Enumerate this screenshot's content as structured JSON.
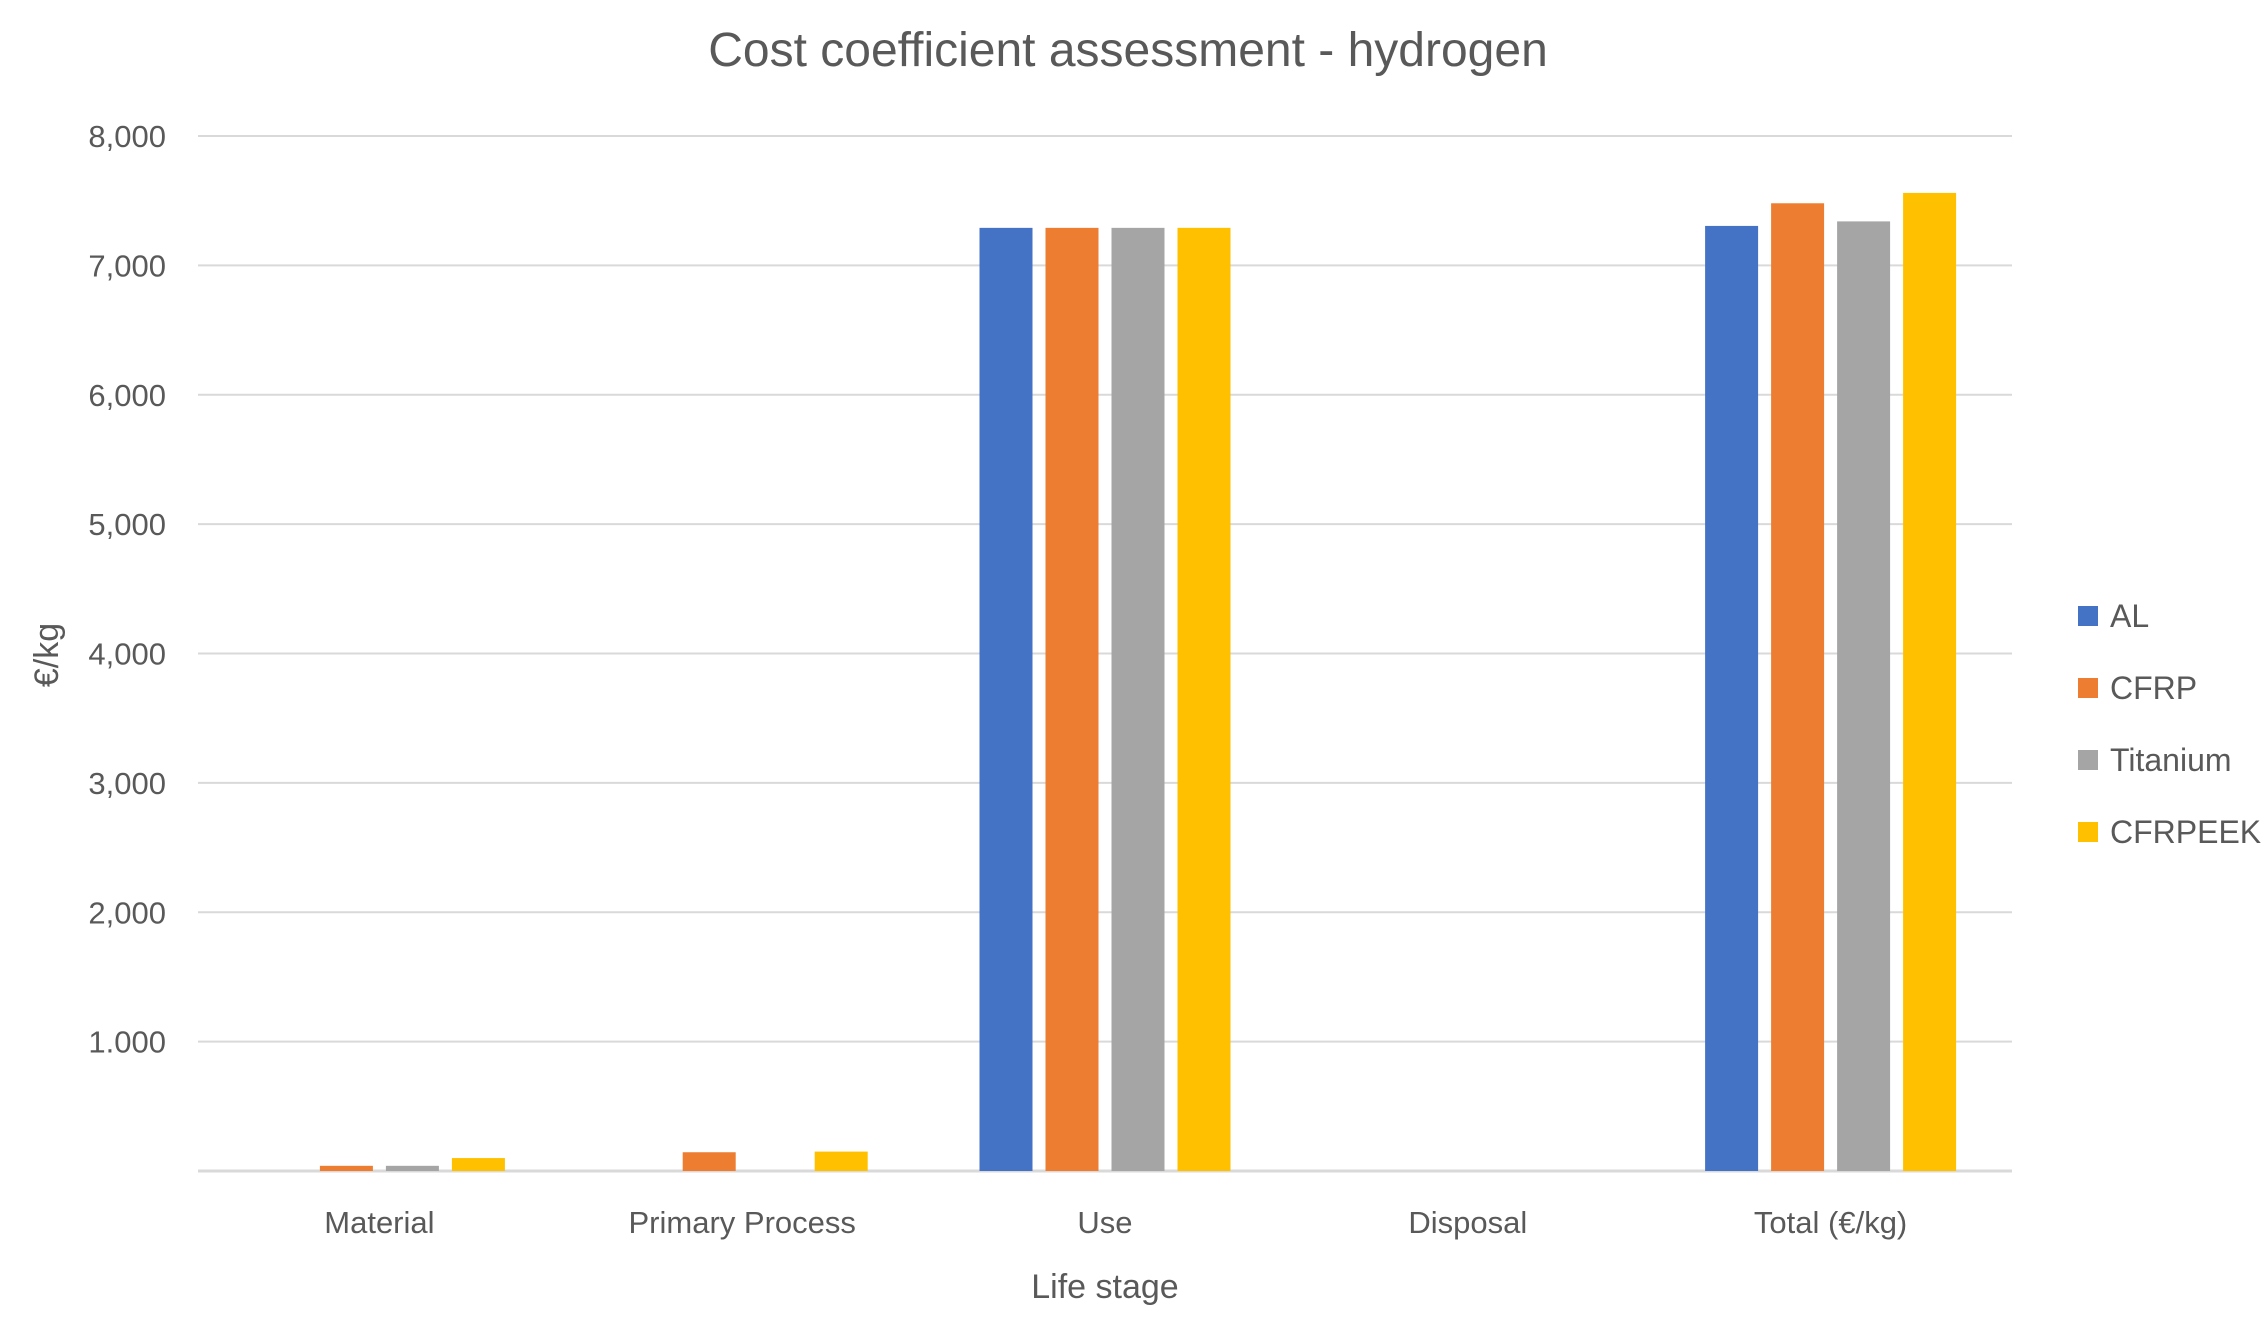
{
  "chart_data": {
    "type": "bar",
    "title": "Cost coefficient assessment  - hydrogen",
    "xlabel": "Life stage",
    "ylabel": "€/kg",
    "categories": [
      "Material",
      "Primary Process",
      "Use",
      "Disposal",
      "Total  (€/kg)"
    ],
    "ylim": [
      0,
      8000
    ],
    "yticks": [
      0,
      1000,
      2000,
      3000,
      4000,
      5000,
      6000,
      7000,
      8000
    ],
    "ytick_labels": [
      "",
      "1.000",
      "2,000",
      "3,000",
      "4,000",
      "5,000",
      "6,000",
      "7,000",
      "8,000"
    ],
    "grid": true,
    "legend_position": "right",
    "series": [
      {
        "name": "AL",
        "color": "#4472C4",
        "values": [
          0,
          0,
          7290,
          0,
          7305
        ]
      },
      {
        "name": "CFRP",
        "color": "#ED7D31",
        "values": [
          40,
          145,
          7290,
          0,
          7480
        ]
      },
      {
        "name": "Titanium",
        "color": "#A5A5A5",
        "values": [
          40,
          0,
          7290,
          0,
          7340
        ]
      },
      {
        "name": "CFRPEEK",
        "color": "#FFC000",
        "values": [
          100,
          150,
          7290,
          0,
          7560
        ]
      }
    ]
  }
}
